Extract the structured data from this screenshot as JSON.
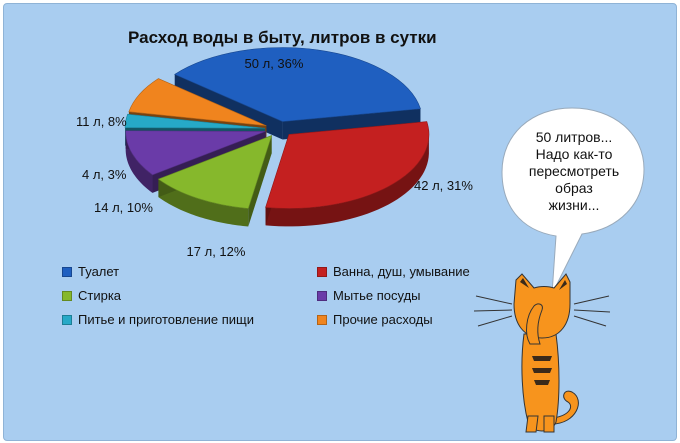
{
  "chart_data": {
    "type": "pie",
    "title": "Расход воды в быту, литров в сутки",
    "slices": [
      {
        "name": "Туалет",
        "value": 50,
        "percent": 36,
        "label": "50 л, 36%",
        "color": "#1f5fc0"
      },
      {
        "name": "Ванна, душ, умывание",
        "value": 42,
        "percent": 31,
        "label": "42 л, 31%",
        "color": "#c42020"
      },
      {
        "name": "Стирка",
        "value": 17,
        "percent": 12,
        "label": "17 л, 12%",
        "color": "#86b82c"
      },
      {
        "name": "Мытье посуды",
        "value": 14,
        "percent": 10,
        "label": "14 л, 10%",
        "color": "#6a3ba8"
      },
      {
        "name": "Питье и приготовление пищи",
        "value": 4,
        "percent": 3,
        "label": "4 л, 3%",
        "color": "#26a9c7"
      },
      {
        "name": "Прочие расходы",
        "value": 11,
        "percent": 8,
        "label": "11 л, 8%",
        "color": "#f0841e"
      }
    ]
  },
  "bubble": {
    "lines": [
      "50 литров...",
      "Надо как-то",
      "пересмотреть",
      "образ",
      "жизни..."
    ]
  },
  "cat": {
    "color": "#f7941d",
    "stripe_color": "#3a2a1a"
  }
}
